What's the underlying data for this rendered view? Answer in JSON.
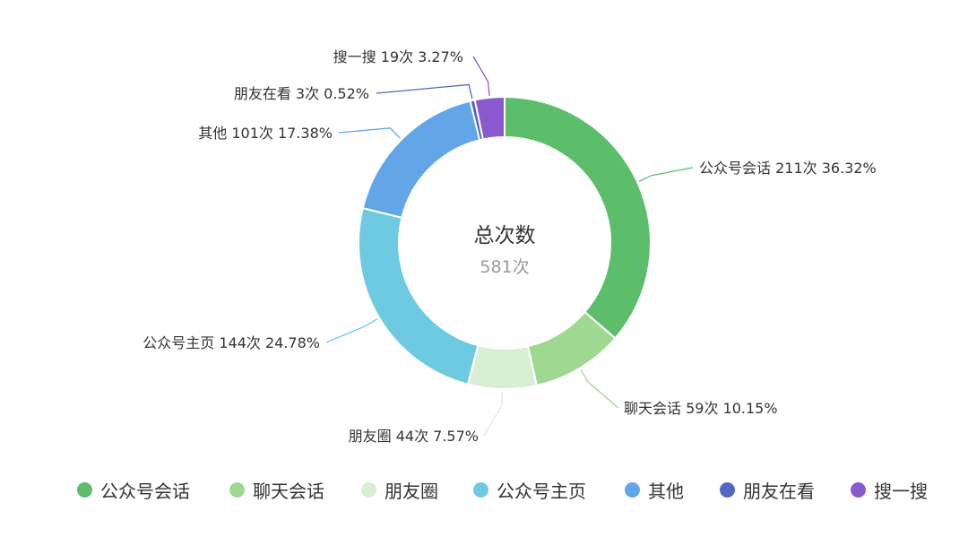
{
  "chart_data": {
    "type": "pie",
    "donut": true,
    "center": {
      "title": "总次数",
      "value": "581次"
    },
    "slices": [
      {
        "name": "公众号会话",
        "count": 211,
        "percent": 36.32,
        "label": "公众号会话 211次 36.32%",
        "color": "#5cbe6b"
      },
      {
        "name": "聊天会话",
        "count": 59,
        "percent": 10.15,
        "label": "聊天会话 59次 10.15%",
        "color": "#9ed891"
      },
      {
        "name": "朋友圈",
        "count": 44,
        "percent": 7.57,
        "label": "朋友圈 44次 7.57%",
        "color": "#d8efd4"
      },
      {
        "name": "公众号主页",
        "count": 144,
        "percent": 24.78,
        "label": "公众号主页 144次 24.78%",
        "color": "#6ecae0"
      },
      {
        "name": "其他",
        "count": 101,
        "percent": 17.38,
        "label": "其他 101次 17.38%",
        "color": "#62a6e8"
      },
      {
        "name": "朋友在看",
        "count": 3,
        "percent": 0.52,
        "label": "朋友在看 3次 0.52%",
        "color": "#5366c4"
      },
      {
        "name": "搜一搜",
        "count": 19,
        "percent": 3.27,
        "label": "搜一搜 19次 3.27%",
        "color": "#8b59cf"
      }
    ],
    "legend_position": "bottom"
  }
}
